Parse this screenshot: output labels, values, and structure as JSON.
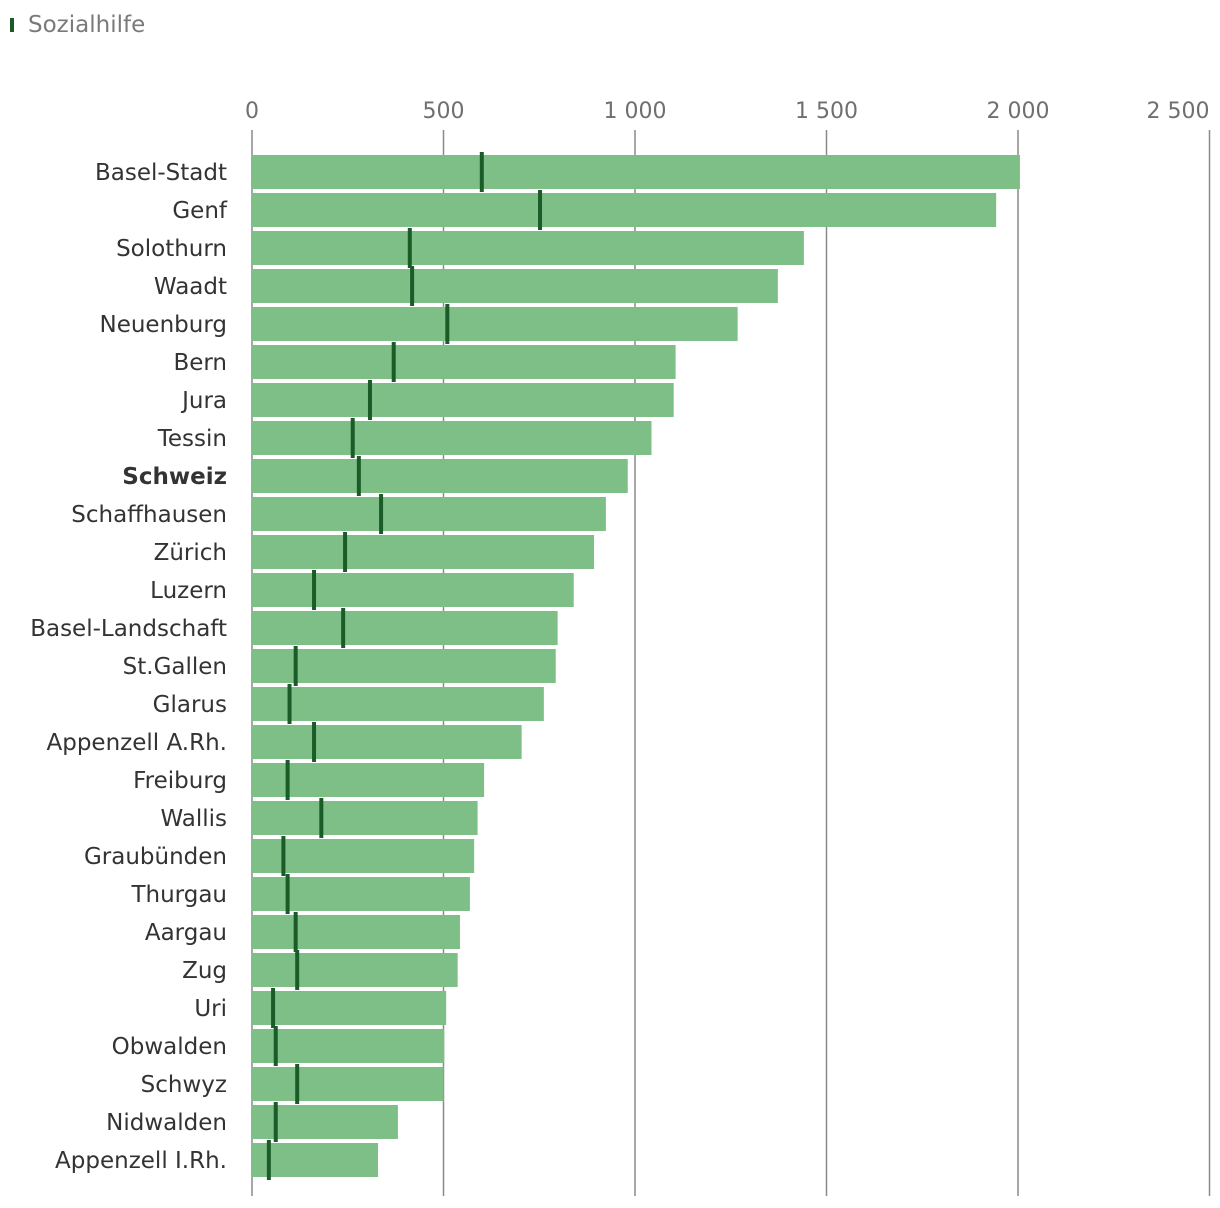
{
  "legend": {
    "label": "Sozialhilfe"
  },
  "colors": {
    "bar": "#7dbf87",
    "marker": "#1a5c27",
    "grid": "#8a8a8a",
    "text": "#333333"
  },
  "chart_data": {
    "type": "bar",
    "orientation": "horizontal",
    "xlim": [
      0,
      2500
    ],
    "ticks": [
      0,
      500,
      1000,
      1500,
      2000,
      2500
    ],
    "tick_labels": [
      "0",
      "500",
      "1 000",
      "1 500",
      "2 000",
      "2 500"
    ],
    "categories": [
      "Basel-Stadt",
      "Genf",
      "Solothurn",
      "Waadt",
      "Neuenburg",
      "Bern",
      "Jura",
      "Tessin",
      "Schweiz",
      "Schaffhausen",
      "Zürich",
      "Luzern",
      "Basel-Landschaft",
      "St.Gallen",
      "Glarus",
      "Appenzell A.Rh.",
      "Freiburg",
      "Wallis",
      "Graubünden",
      "Thurgau",
      "Aargau",
      "Zug",
      "Uri",
      "Obwalden",
      "Schwyz",
      "Nidwalden",
      "Appenzell I.Rh."
    ],
    "highlight": "Schweiz",
    "series": [
      {
        "values": [
          2005,
          1943,
          1441,
          1373,
          1268,
          1106,
          1101,
          1043,
          981,
          924,
          893,
          840,
          798,
          793,
          762,
          704,
          606,
          589,
          580,
          569,
          543,
          537,
          507,
          502,
          500,
          381,
          329
        ]
      },
      {
        "name": "Sozialhilfe",
        "marker": true,
        "values": [
          600,
          752,
          412,
          418,
          510,
          370,
          308,
          263,
          279,
          337,
          243,
          162,
          238,
          114,
          98,
          162,
          93,
          181,
          82,
          93,
          114,
          118,
          55,
          62,
          118,
          62,
          44
        ]
      }
    ],
    "grid": true
  }
}
